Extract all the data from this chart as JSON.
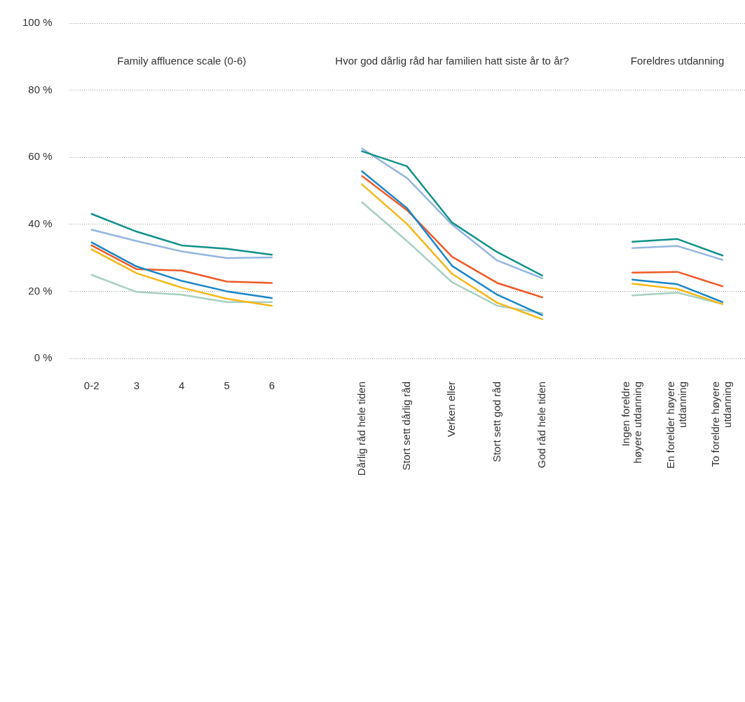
{
  "chart_data": {
    "type": "line",
    "categories": [
      "0-2",
      "3",
      "4",
      "5",
      "6",
      null,
      "Dårlig råd hele tiden",
      "Stort sett dårlig råd",
      "Verken eller",
      "Stort sett god råd",
      "God råd hele tiden",
      null,
      "Ingen foreldre høyere utdanning",
      "En forelder høyere utdanning",
      "To foreldre høyere utdanning"
    ],
    "series": [
      {
        "color": "#12918a",
        "values": [
          43.1,
          37.8,
          33.7,
          32.7,
          30.9,
          null,
          61.8,
          57.3,
          40.5,
          31.7,
          24.7,
          null,
          34.8,
          35.6,
          30.7
        ]
      },
      {
        "color": "#93b6e0",
        "values": [
          38.4,
          35.0,
          31.9,
          29.9,
          30.1,
          null,
          62.6,
          53.8,
          39.9,
          29.2,
          23.9,
          null,
          32.9,
          33.5,
          29.4
        ]
      },
      {
        "color": "#1a86c8",
        "values": [
          34.6,
          27.4,
          23.1,
          20.0,
          18.0,
          null,
          55.8,
          44.8,
          27.6,
          19.0,
          12.9,
          null,
          23.5,
          22.1,
          16.8
        ]
      },
      {
        "color": "#f05a28",
        "values": [
          33.7,
          26.6,
          26.2,
          22.9,
          22.5,
          null,
          54.4,
          44.2,
          30.3,
          22.5,
          18.2,
          null,
          25.6,
          25.8,
          21.5
        ]
      },
      {
        "color": "#f7b718",
        "values": [
          32.5,
          25.4,
          21.1,
          17.8,
          15.7,
          null,
          51.9,
          40.1,
          25.2,
          16.6,
          11.7,
          null,
          22.3,
          20.7,
          16.2
        ]
      },
      {
        "color": "#a8cfc3",
        "values": [
          24.9,
          19.8,
          19.0,
          16.8,
          16.8,
          null,
          46.6,
          35.0,
          22.7,
          15.7,
          13.5,
          null,
          18.8,
          19.6,
          16.2
        ]
      }
    ],
    "ylim": [
      0,
      100
    ],
    "yticks": [
      {
        "value": 0,
        "label": "0 %"
      },
      {
        "value": 20,
        "label": "20 %"
      },
      {
        "value": 40,
        "label": "40 %"
      },
      {
        "value": 60,
        "label": "60 %"
      },
      {
        "value": 80,
        "label": "80 %"
      },
      {
        "value": 100,
        "label": "100 %"
      }
    ],
    "grid": "y",
    "legend": false,
    "marker": "none",
    "line_style": "solid",
    "annotations": [
      "Family affluence scale (0-6)",
      "Hvor god dårlig råd har familien hatt siste år to år?",
      "Foreldres utdanning"
    ]
  }
}
